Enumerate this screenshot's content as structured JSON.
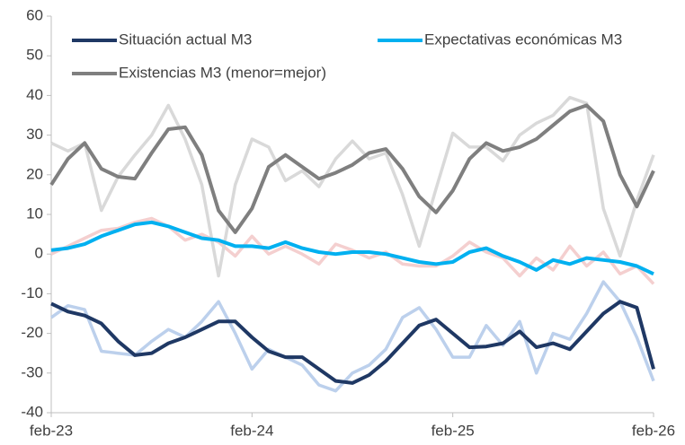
{
  "chart_data": {
    "type": "line",
    "categories": [
      "feb-23",
      null,
      null,
      null,
      null,
      null,
      null,
      null,
      null,
      null,
      null,
      null,
      "feb-24",
      null,
      null,
      null,
      null,
      null,
      null,
      null,
      null,
      null,
      null,
      null,
      "feb-25",
      null,
      null,
      null,
      null,
      null,
      null,
      null,
      null,
      null,
      null,
      null,
      "feb-26"
    ],
    "ylim": [
      -40,
      60
    ],
    "yticks": [
      -40,
      -30,
      -20,
      -10,
      0,
      10,
      20,
      30,
      40,
      50,
      60
    ],
    "grid": false,
    "series": [
      {
        "color": "#bcd0ec",
        "values": [
          -16,
          -13,
          -14,
          -24.5,
          -25,
          -25.5,
          -22,
          -19,
          -21,
          -17,
          -12,
          -20,
          -29,
          -24,
          -26,
          -28,
          -33,
          -34.5,
          -30,
          -28,
          -24,
          -16,
          -13.5,
          -19,
          -26,
          -26,
          -18,
          -23,
          -17,
          -30,
          -20,
          -21.5,
          -15,
          -7,
          -12,
          -21,
          -32
        ]
      },
      {
        "color": "#f4cfcf",
        "values": [
          0,
          2,
          4,
          6,
          6.5,
          8,
          9,
          7,
          3.5,
          5,
          3,
          -0.5,
          4.5,
          0,
          2,
          0,
          -2.5,
          2.5,
          1,
          -1,
          0.5,
          -2.5,
          -3,
          -3,
          -0.5,
          3,
          0.5,
          -1,
          -5.5,
          -1,
          -4,
          2,
          -3,
          0.5,
          -5,
          -3,
          -7.5
        ]
      },
      {
        "color": "#d9d9d9",
        "values": [
          28,
          26,
          28,
          11,
          19.5,
          25,
          30,
          37.5,
          29,
          17.5,
          -5.5,
          17.5,
          29,
          27,
          18.5,
          21,
          17,
          24,
          28.5,
          24,
          25.5,
          15,
          2,
          16.5,
          30.5,
          27,
          27,
          23.5,
          30,
          33,
          35,
          39.5,
          38,
          11.5,
          -0.5,
          13.5,
          25
        ]
      },
      {
        "name": "Situación actual M3",
        "color": "#1f3864",
        "values": [
          -12.5,
          -14.5,
          -15.5,
          -17.5,
          -22,
          -25.5,
          -25,
          -22.5,
          -21,
          -19,
          -17,
          -17,
          -21,
          -24.5,
          -26,
          -26,
          -29,
          -32,
          -32.5,
          -30.5,
          -27,
          -22.5,
          -18,
          -16.5,
          -20,
          -23.5,
          -23.3,
          -22.5,
          -19.5,
          -23.5,
          -22.5,
          -24,
          -19.5,
          -15,
          -12,
          -13.5,
          -29
        ]
      },
      {
        "name": "Expectativas económicas M3",
        "color": "#00b0f0",
        "values": [
          1,
          1.5,
          2.5,
          4.5,
          6,
          7.5,
          8,
          7,
          5.5,
          4,
          3.5,
          2,
          2,
          1.5,
          3,
          1.5,
          0.5,
          0,
          0.5,
          0.5,
          0,
          -1,
          -2,
          -2.5,
          -2,
          0.5,
          1.5,
          -0.5,
          -2,
          -4,
          -1.5,
          -2.5,
          -1,
          -1.5,
          -2,
          -3,
          -5
        ]
      },
      {
        "name": "Existencias M3 (menor=mejor)",
        "color": "#7f7f7f",
        "values": [
          17.5,
          24,
          28,
          21.5,
          19.5,
          19,
          25.5,
          31.5,
          32,
          25,
          11,
          5.5,
          11.5,
          22,
          25,
          22,
          19,
          20.5,
          22.5,
          25.5,
          26.5,
          21.5,
          14.5,
          10.5,
          16,
          24,
          28,
          26,
          27,
          29,
          32.5,
          36,
          37.5,
          33.5,
          20,
          12,
          21
        ]
      }
    ]
  }
}
